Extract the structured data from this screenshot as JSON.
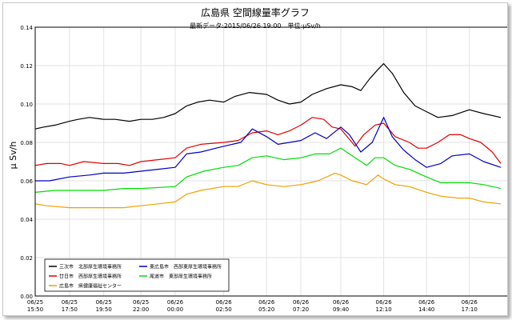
{
  "chart_data": {
    "type": "line",
    "title": "広島県 空間線量率グラフ",
    "subtitle": "最新データ:2015/06/26 19:00　単位:μSv/h",
    "ylabel": "μ Sv/h",
    "xlabel": "",
    "ylim": [
      0,
      0.14
    ],
    "yticks": [
      "0.00",
      "0.02",
      "0.04",
      "0.06",
      "0.08",
      "0.10",
      "0.12",
      "0.14"
    ],
    "ytick_values": [
      0,
      0.02,
      0.04,
      0.06,
      0.08,
      0.1,
      0.12,
      0.14
    ],
    "xlim": [
      "2015-06-25 15:50",
      "2015-06-26 19:00"
    ],
    "xtick_times": [
      "2015-06-25 15:50",
      "2015-06-25 17:50",
      "2015-06-25 19:50",
      "2015-06-25 22:00",
      "2015-06-26 00:00",
      "2015-06-26 02:50",
      "2015-06-26 05:20",
      "2015-06-26 07:20",
      "2015-06-26 09:40",
      "2015-06-26 12:10",
      "2015-06-26 14:40",
      "2015-06-26 17:10"
    ],
    "xticks": [
      {
        "date": "06/25",
        "time": "15:50"
      },
      {
        "date": "06/25",
        "time": "17:50"
      },
      {
        "date": "06/25",
        "time": "19:50"
      },
      {
        "date": "06/25",
        "time": "22:00"
      },
      {
        "date": "06/26",
        "time": "00:00"
      },
      {
        "date": "06/26",
        "time": "02:50"
      },
      {
        "date": "06/26",
        "time": "05:20"
      },
      {
        "date": "06/26",
        "time": "07:20"
      },
      {
        "date": "06/26",
        "time": "09:40"
      },
      {
        "date": "06/26",
        "time": "12:10"
      },
      {
        "date": "06/26",
        "time": "14:40"
      },
      {
        "date": "06/26",
        "time": "17:10"
      }
    ],
    "grid": true,
    "legend_position": "bottom-left",
    "series": [
      {
        "name": "三次市　北部厚生環境事務所",
        "color": "#000000",
        "points": [
          [
            "2015-06-25 15:50",
            0.087
          ],
          [
            "2015-06-25 16:20",
            0.088
          ],
          [
            "2015-06-25 17:00",
            0.089
          ],
          [
            "2015-06-25 17:50",
            0.091
          ],
          [
            "2015-06-25 18:20",
            0.092
          ],
          [
            "2015-06-25 19:00",
            0.093
          ],
          [
            "2015-06-25 19:50",
            0.092
          ],
          [
            "2015-06-25 20:30",
            0.092
          ],
          [
            "2015-06-25 21:20",
            0.091
          ],
          [
            "2015-06-25 22:00",
            0.092
          ],
          [
            "2015-06-25 22:40",
            0.092
          ],
          [
            "2015-06-25 23:20",
            0.093
          ],
          [
            "2015-06-26 00:00",
            0.095
          ],
          [
            "2015-06-26 00:40",
            0.099
          ],
          [
            "2015-06-26 01:20",
            0.101
          ],
          [
            "2015-06-26 02:00",
            0.102
          ],
          [
            "2015-06-26 02:50",
            0.101
          ],
          [
            "2015-06-26 03:30",
            0.104
          ],
          [
            "2015-06-26 04:20",
            0.106
          ],
          [
            "2015-06-26 05:20",
            0.105
          ],
          [
            "2015-06-26 06:00",
            0.102
          ],
          [
            "2015-06-26 06:40",
            0.1
          ],
          [
            "2015-06-26 07:20",
            0.101
          ],
          [
            "2015-06-26 08:00",
            0.105
          ],
          [
            "2015-06-26 08:50",
            0.108
          ],
          [
            "2015-06-26 09:40",
            0.11
          ],
          [
            "2015-06-26 10:20",
            0.109
          ],
          [
            "2015-06-26 10:50",
            0.107
          ],
          [
            "2015-06-26 11:20",
            0.113
          ],
          [
            "2015-06-26 11:50",
            0.118
          ],
          [
            "2015-06-26 12:10",
            0.121
          ],
          [
            "2015-06-26 12:40",
            0.116
          ],
          [
            "2015-06-26 13:20",
            0.106
          ],
          [
            "2015-06-26 14:00",
            0.099
          ],
          [
            "2015-06-26 14:40",
            0.096
          ],
          [
            "2015-06-26 15:20",
            0.093
          ],
          [
            "2015-06-26 16:10",
            0.094
          ],
          [
            "2015-06-26 17:10",
            0.097
          ],
          [
            "2015-06-26 18:00",
            0.095
          ],
          [
            "2015-06-26 19:00",
            0.093
          ]
        ]
      },
      {
        "name": "廿日市　西部厚生環境事務所",
        "color": "#e00000",
        "points": [
          [
            "2015-06-25 15:50",
            0.068
          ],
          [
            "2015-06-25 16:30",
            0.069
          ],
          [
            "2015-06-25 17:20",
            0.069
          ],
          [
            "2015-06-25 17:50",
            0.068
          ],
          [
            "2015-06-25 18:40",
            0.07
          ],
          [
            "2015-06-25 19:50",
            0.069
          ],
          [
            "2015-06-25 20:40",
            0.069
          ],
          [
            "2015-06-25 21:20",
            0.068
          ],
          [
            "2015-06-25 22:00",
            0.07
          ],
          [
            "2015-06-25 23:00",
            0.071
          ],
          [
            "2015-06-26 00:00",
            0.072
          ],
          [
            "2015-06-26 00:40",
            0.077
          ],
          [
            "2015-06-26 01:30",
            0.079
          ],
          [
            "2015-06-26 02:50",
            0.08
          ],
          [
            "2015-06-26 03:40",
            0.081
          ],
          [
            "2015-06-26 04:30",
            0.085
          ],
          [
            "2015-06-26 05:20",
            0.086
          ],
          [
            "2015-06-26 06:00",
            0.084
          ],
          [
            "2015-06-26 06:40",
            0.086
          ],
          [
            "2015-06-26 07:20",
            0.089
          ],
          [
            "2015-06-26 08:00",
            0.093
          ],
          [
            "2015-06-26 08:40",
            0.092
          ],
          [
            "2015-06-26 09:10",
            0.088
          ],
          [
            "2015-06-26 09:40",
            0.087
          ],
          [
            "2015-06-26 10:30",
            0.078
          ],
          [
            "2015-06-26 11:00",
            0.084
          ],
          [
            "2015-06-26 11:40",
            0.089
          ],
          [
            "2015-06-26 12:10",
            0.09
          ],
          [
            "2015-06-26 12:50",
            0.083
          ],
          [
            "2015-06-26 13:40",
            0.08
          ],
          [
            "2015-06-26 14:10",
            0.077
          ],
          [
            "2015-06-26 14:40",
            0.077
          ],
          [
            "2015-06-26 15:20",
            0.08
          ],
          [
            "2015-06-26 16:00",
            0.084
          ],
          [
            "2015-06-26 16:40",
            0.084
          ],
          [
            "2015-06-26 17:10",
            0.082
          ],
          [
            "2015-06-26 17:50",
            0.08
          ],
          [
            "2015-06-26 18:30",
            0.075
          ],
          [
            "2015-06-26 19:00",
            0.069
          ]
        ]
      },
      {
        "name": "東広島市　西部東厚生環境事務所",
        "color": "#0000c0",
        "points": [
          [
            "2015-06-25 15:50",
            0.06
          ],
          [
            "2015-06-25 16:40",
            0.06
          ],
          [
            "2015-06-25 17:50",
            0.062
          ],
          [
            "2015-06-25 19:00",
            0.063
          ],
          [
            "2015-06-25 19:50",
            0.064
          ],
          [
            "2015-06-25 21:00",
            0.064
          ],
          [
            "2015-06-25 22:00",
            0.065
          ],
          [
            "2015-06-25 23:00",
            0.066
          ],
          [
            "2015-06-26 00:00",
            0.067
          ],
          [
            "2015-06-26 00:40",
            0.074
          ],
          [
            "2015-06-26 01:30",
            0.075
          ],
          [
            "2015-06-26 02:50",
            0.078
          ],
          [
            "2015-06-26 03:50",
            0.08
          ],
          [
            "2015-06-26 04:30",
            0.087
          ],
          [
            "2015-06-26 05:20",
            0.083
          ],
          [
            "2015-06-26 06:00",
            0.079
          ],
          [
            "2015-06-26 07:20",
            0.081
          ],
          [
            "2015-06-26 08:10",
            0.085
          ],
          [
            "2015-06-26 08:50",
            0.082
          ],
          [
            "2015-06-26 09:40",
            0.088
          ],
          [
            "2015-06-26 10:10",
            0.084
          ],
          [
            "2015-06-26 10:50",
            0.075
          ],
          [
            "2015-06-26 11:30",
            0.08
          ],
          [
            "2015-06-26 12:10",
            0.093
          ],
          [
            "2015-06-26 12:40",
            0.083
          ],
          [
            "2015-06-26 13:20",
            0.076
          ],
          [
            "2015-06-26 14:00",
            0.071
          ],
          [
            "2015-06-26 14:40",
            0.067
          ],
          [
            "2015-06-26 15:30",
            0.069
          ],
          [
            "2015-06-26 16:10",
            0.073
          ],
          [
            "2015-06-26 17:10",
            0.074
          ],
          [
            "2015-06-26 18:00",
            0.07
          ],
          [
            "2015-06-26 19:00",
            0.067
          ]
        ]
      },
      {
        "name": "尾道市　東部厚生環境事務所",
        "color": "#00dd00",
        "points": [
          [
            "2015-06-25 15:50",
            0.054
          ],
          [
            "2015-06-25 17:00",
            0.055
          ],
          [
            "2015-06-25 17:50",
            0.055
          ],
          [
            "2015-06-25 19:50",
            0.055
          ],
          [
            "2015-06-25 21:00",
            0.056
          ],
          [
            "2015-06-25 22:00",
            0.056
          ],
          [
            "2015-06-26 00:00",
            0.057
          ],
          [
            "2015-06-26 00:40",
            0.062
          ],
          [
            "2015-06-26 01:40",
            0.065
          ],
          [
            "2015-06-26 02:50",
            0.067
          ],
          [
            "2015-06-26 03:40",
            0.068
          ],
          [
            "2015-06-26 04:30",
            0.072
          ],
          [
            "2015-06-26 05:20",
            0.073
          ],
          [
            "2015-06-26 06:20",
            0.071
          ],
          [
            "2015-06-26 07:20",
            0.072
          ],
          [
            "2015-06-26 08:10",
            0.074
          ],
          [
            "2015-06-26 09:00",
            0.074
          ],
          [
            "2015-06-26 09:40",
            0.077
          ],
          [
            "2015-06-26 10:20",
            0.073
          ],
          [
            "2015-06-26 11:10",
            0.068
          ],
          [
            "2015-06-26 11:40",
            0.072
          ],
          [
            "2015-06-26 12:10",
            0.072
          ],
          [
            "2015-06-26 12:50",
            0.068
          ],
          [
            "2015-06-26 13:40",
            0.066
          ],
          [
            "2015-06-26 14:40",
            0.062
          ],
          [
            "2015-06-26 15:30",
            0.059
          ],
          [
            "2015-06-26 16:10",
            0.059
          ],
          [
            "2015-06-26 17:10",
            0.059
          ],
          [
            "2015-06-26 18:00",
            0.058
          ],
          [
            "2015-06-26 19:00",
            0.056
          ]
        ]
      },
      {
        "name": "広島市　県健康福祉センター",
        "color": "#f0a000",
        "points": [
          [
            "2015-06-25 15:50",
            0.048
          ],
          [
            "2015-06-25 16:30",
            0.047
          ],
          [
            "2015-06-25 17:50",
            0.046
          ],
          [
            "2015-06-25 19:50",
            0.046
          ],
          [
            "2015-06-25 21:00",
            0.046
          ],
          [
            "2015-06-25 22:00",
            0.047
          ],
          [
            "2015-06-25 23:00",
            0.048
          ],
          [
            "2015-06-26 00:00",
            0.049
          ],
          [
            "2015-06-26 00:40",
            0.053
          ],
          [
            "2015-06-26 01:30",
            0.055
          ],
          [
            "2015-06-26 02:50",
            0.057
          ],
          [
            "2015-06-26 03:40",
            0.057
          ],
          [
            "2015-06-26 04:30",
            0.06
          ],
          [
            "2015-06-26 05:20",
            0.058
          ],
          [
            "2015-06-26 06:20",
            0.057
          ],
          [
            "2015-06-26 07:20",
            0.058
          ],
          [
            "2015-06-26 08:20",
            0.06
          ],
          [
            "2015-06-26 09:20",
            0.064
          ],
          [
            "2015-06-26 09:40",
            0.063
          ],
          [
            "2015-06-26 10:20",
            0.06
          ],
          [
            "2015-06-26 11:10",
            0.058
          ],
          [
            "2015-06-26 11:50",
            0.063
          ],
          [
            "2015-06-26 12:10",
            0.061
          ],
          [
            "2015-06-26 12:50",
            0.058
          ],
          [
            "2015-06-26 13:40",
            0.057
          ],
          [
            "2015-06-26 14:40",
            0.054
          ],
          [
            "2015-06-26 15:30",
            0.052
          ],
          [
            "2015-06-26 16:30",
            0.051
          ],
          [
            "2015-06-26 17:10",
            0.051
          ],
          [
            "2015-06-26 18:00",
            0.049
          ],
          [
            "2015-06-26 19:00",
            0.048
          ]
        ]
      }
    ]
  }
}
